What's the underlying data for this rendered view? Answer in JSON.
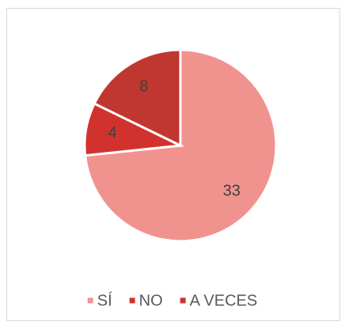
{
  "chart_data": {
    "type": "pie",
    "categories": [
      "SÍ",
      "NO",
      "A VECES"
    ],
    "values": [
      33,
      4,
      8
    ],
    "colors": [
      "#f0938f",
      "#d2322d",
      "#c0372f"
    ],
    "legend": "bottom"
  }
}
